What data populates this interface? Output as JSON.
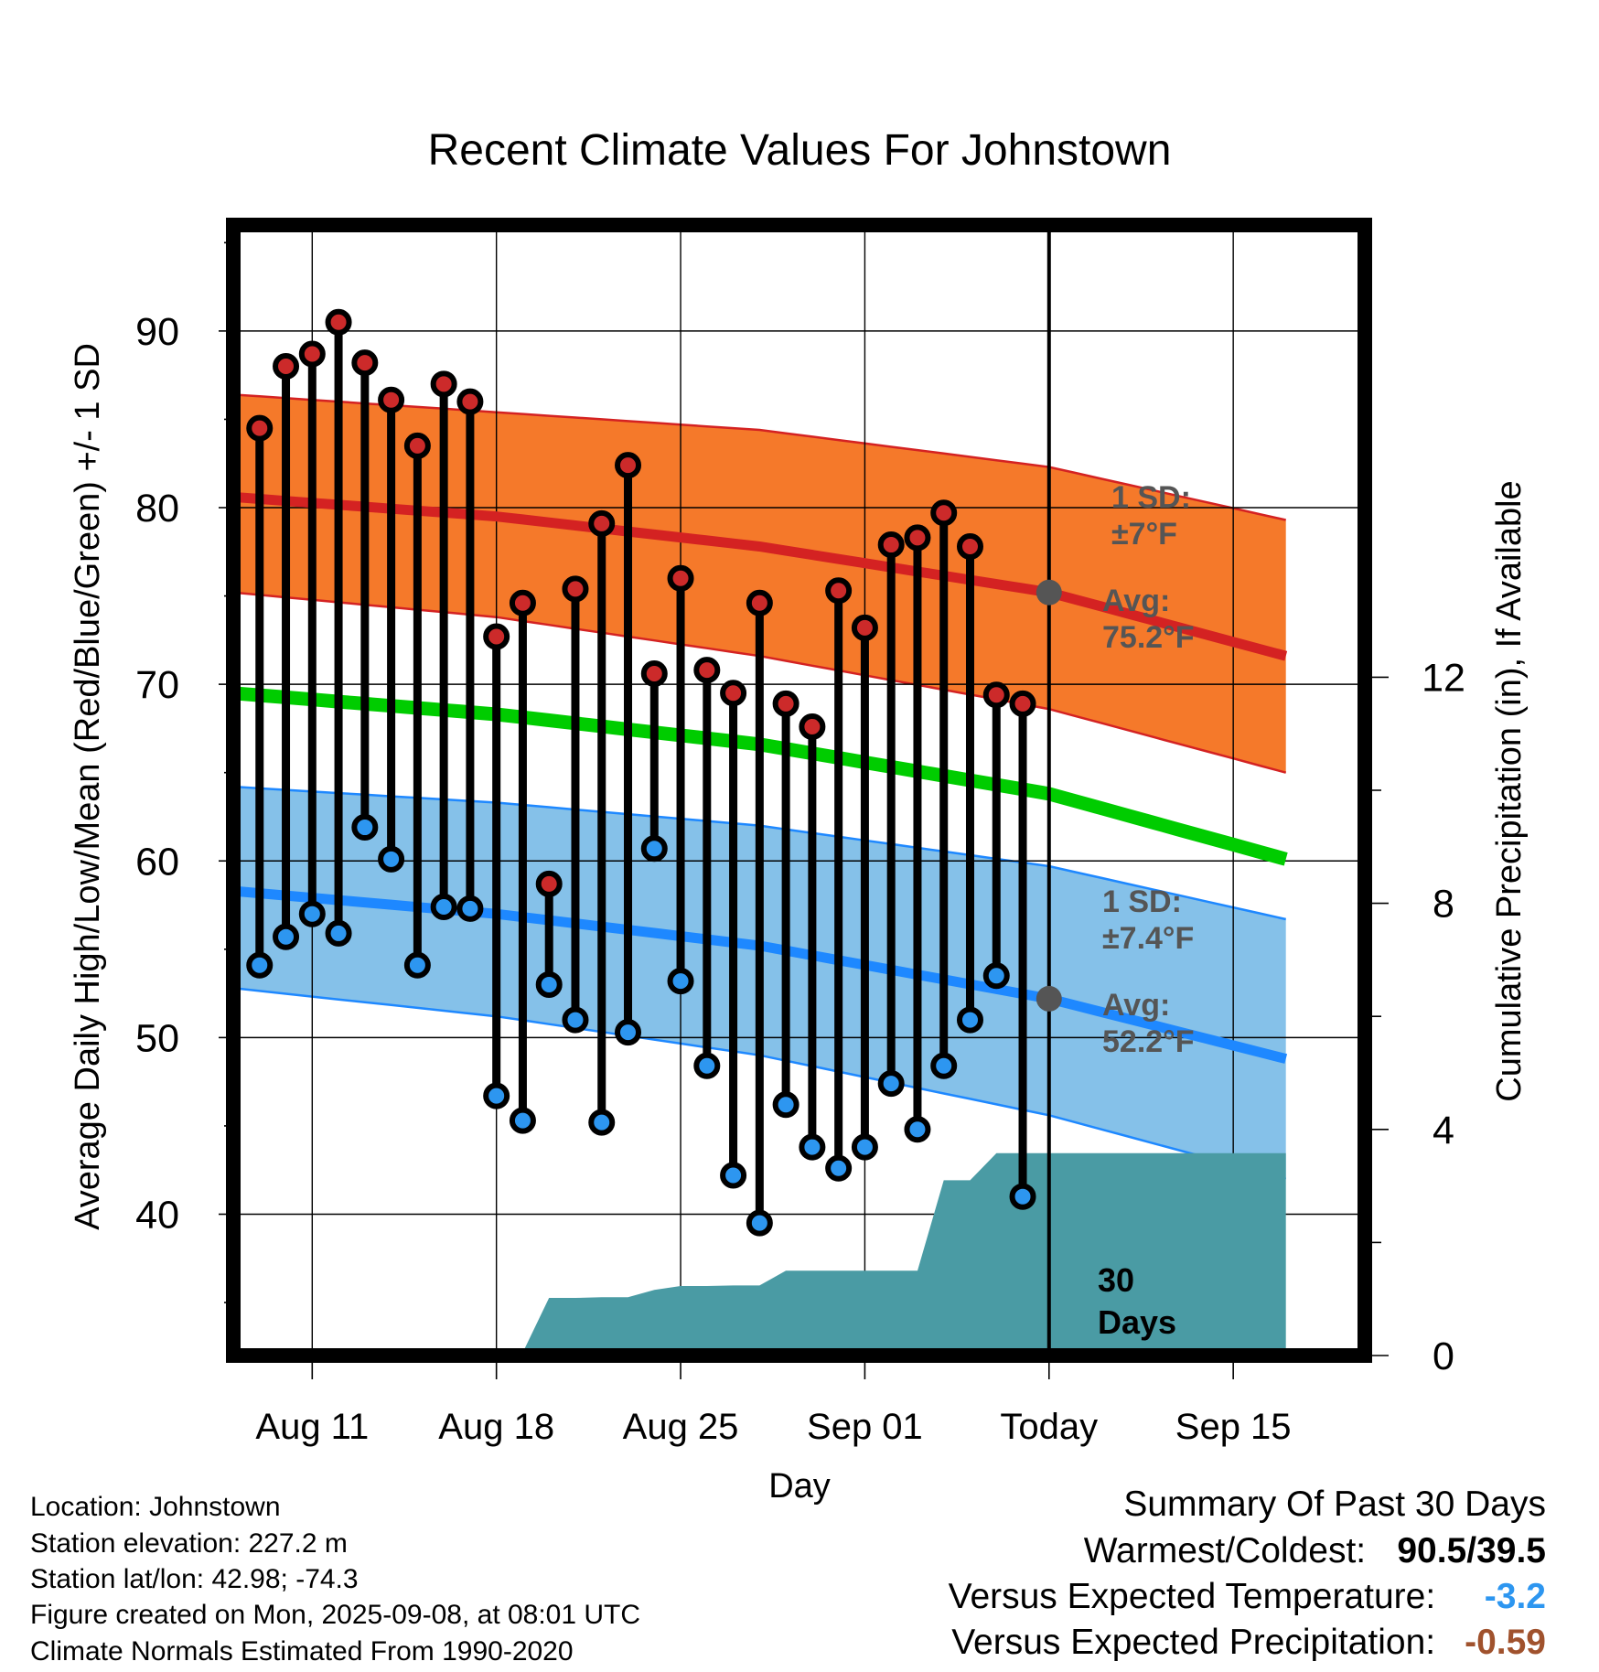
{
  "chart_data": {
    "type": "line",
    "title": "Recent Climate Values For Johnstown",
    "xlabel": "Day",
    "ylabel": "Average Daily High/Low/Mean (Red/Blue/Green) +/- 1 SD",
    "y2label": "Cumulative Precipitation (in), If Available",
    "ylim": [
      32,
      96
    ],
    "y2lim": [
      0,
      20
    ],
    "yticks": [
      40,
      50,
      60,
      70,
      80,
      90
    ],
    "y2ticks": [
      0,
      4,
      8,
      12
    ],
    "xlim": [
      "2025-08-08",
      "2025-09-20"
    ],
    "xticks": [
      {
        "date": "2025-08-11",
        "label": "Aug 11"
      },
      {
        "date": "2025-08-18",
        "label": "Aug 18"
      },
      {
        "date": "2025-08-25",
        "label": "Aug 25"
      },
      {
        "date": "2025-09-01",
        "label": "Sep 01"
      },
      {
        "date": "2025-09-08",
        "label": "Today"
      },
      {
        "date": "2025-09-15",
        "label": "Sep 15"
      }
    ],
    "today": "2025-09-08",
    "grid": true,
    "observed": {
      "dates": [
        "2025-08-09",
        "2025-08-10",
        "2025-08-11",
        "2025-08-12",
        "2025-08-13",
        "2025-08-14",
        "2025-08-15",
        "2025-08-16",
        "2025-08-17",
        "2025-08-18",
        "2025-08-19",
        "2025-08-20",
        "2025-08-21",
        "2025-08-22",
        "2025-08-23",
        "2025-08-24",
        "2025-08-25",
        "2025-08-26",
        "2025-08-27",
        "2025-08-28",
        "2025-08-29",
        "2025-08-30",
        "2025-08-31",
        "2025-09-01",
        "2025-09-02",
        "2025-09-03",
        "2025-09-04",
        "2025-09-05",
        "2025-09-06",
        "2025-09-07"
      ],
      "high": [
        84.5,
        88.0,
        88.7,
        90.5,
        88.2,
        86.1,
        83.5,
        87.0,
        86.0,
        72.7,
        74.6,
        58.7,
        75.4,
        79.1,
        82.4,
        70.6,
        76.0,
        70.8,
        69.5,
        74.6,
        68.9,
        67.6,
        75.3,
        73.2,
        77.9,
        78.3,
        79.7,
        77.8,
        69.4,
        68.9
      ],
      "low": [
        54.1,
        55.7,
        57.0,
        55.9,
        61.9,
        60.1,
        54.1,
        57.4,
        57.3,
        46.7,
        45.3,
        53.0,
        51.0,
        45.2,
        50.3,
        60.7,
        53.2,
        48.4,
        42.2,
        39.5,
        46.2,
        43.8,
        42.6,
        43.8,
        47.4,
        44.8,
        48.4,
        51.0,
        53.5,
        41.0
      ]
    },
    "normal_high": {
      "dates": [
        "2025-08-08",
        "2025-08-18",
        "2025-08-28",
        "2025-09-08",
        "2025-09-17"
      ],
      "avg": [
        80.6,
        79.5,
        77.8,
        75.2,
        71.6
      ],
      "upper": [
        86.4,
        85.4,
        84.4,
        82.3,
        79.3
      ],
      "lower": [
        75.2,
        73.8,
        71.6,
        68.6,
        65.0
      ]
    },
    "normal_low": {
      "dates": [
        "2025-08-08",
        "2025-08-18",
        "2025-08-28",
        "2025-09-08",
        "2025-09-17"
      ],
      "avg": [
        58.3,
        57.0,
        55.2,
        52.2,
        48.8
      ],
      "upper": [
        64.2,
        63.3,
        62.0,
        59.7,
        56.7
      ],
      "lower": [
        52.8,
        51.2,
        49.0,
        45.6,
        42.0
      ]
    },
    "normal_mean": {
      "dates": [
        "2025-08-08",
        "2025-08-18",
        "2025-08-28",
        "2025-09-08",
        "2025-09-17"
      ],
      "values": [
        69.5,
        68.3,
        66.6,
        63.8,
        60.1
      ]
    },
    "precipitation": {
      "dates": [
        "2025-08-08",
        "2025-08-17",
        "2025-08-18",
        "2025-08-19",
        "2025-08-20",
        "2025-08-21",
        "2025-08-22",
        "2025-08-23",
        "2025-08-24",
        "2025-08-25",
        "2025-08-26",
        "2025-08-27",
        "2025-08-28",
        "2025-08-29",
        "2025-08-30",
        "2025-08-31",
        "2025-09-01",
        "2025-09-02",
        "2025-09-03",
        "2025-09-04",
        "2025-09-05",
        "2025-09-06",
        "2025-09-07",
        "2025-09-08",
        "2025-09-17"
      ],
      "values": [
        0,
        0,
        0.03,
        0.05,
        1.02,
        1.02,
        1.03,
        1.03,
        1.16,
        1.23,
        1.23,
        1.24,
        1.24,
        1.5,
        1.5,
        1.5,
        1.5,
        1.5,
        1.5,
        3.1,
        3.1,
        3.58,
        3.58,
        3.58,
        3.58
      ]
    },
    "annotations": {
      "high_sd": [
        "1 SD:",
        "±7°F"
      ],
      "high_avg": [
        "Avg:",
        "75.2°F"
      ],
      "low_sd": [
        "1 SD:",
        "±7.4°F"
      ],
      "low_avg": [
        "Avg:",
        "52.2°F"
      ],
      "precip_period": [
        "30",
        "Days"
      ]
    },
    "colors": {
      "high_band": "#F5792A",
      "high_avg": "#D42222",
      "low_band": "#85C1E9",
      "low_avg": "#1E88FF",
      "mean": "#00CC00",
      "precip": "#4A9BA4",
      "high_marker": "#CC2A2A",
      "low_marker": "#2D96F0",
      "annotation": "#555555"
    }
  },
  "info": {
    "location": "Location: Johnstown",
    "elevation": "Station elevation: 227.2 m",
    "latlon": "Station lat/lon: 42.98; -74.3",
    "created": "Figure created on Mon, 2025-09-08, at 08:01 UTC",
    "normals": "Climate Normals Estimated From 1990-2020"
  },
  "summary": {
    "title": "Summary Of Past 30 Days",
    "warm_cold_label": "Warmest/Coldest:",
    "warm_cold_value": "90.5/39.5",
    "temp_label": "Versus Expected Temperature:",
    "temp_value": "-3.2",
    "temp_color": "#2D96F0",
    "precip_label": "Versus Expected Precipitation:",
    "precip_value": "-0.59",
    "precip_color": "#A0522D"
  }
}
